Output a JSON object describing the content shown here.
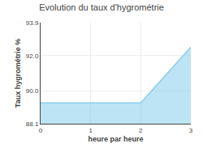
{
  "chart_data": {
    "type": "area",
    "title": "Evolution du taux d'hygrométrie",
    "xlabel": "heure par heure",
    "ylabel": "Taux hygrométrie %",
    "x": [
      0,
      1,
      2,
      3
    ],
    "values": [
      89.3,
      89.3,
      89.3,
      92.5
    ],
    "color": "#87CEEB",
    "xlim": [
      0,
      3
    ],
    "ylim": [
      88.1,
      93.9
    ],
    "xticks": [
      0,
      1,
      2,
      3
    ],
    "yticks": [
      88.1,
      {
        "value": 90,
        "label": "90.0"
      },
      {
        "value": 92,
        "label": "92.0"
      },
      93.9
    ],
    "grid": true
  }
}
